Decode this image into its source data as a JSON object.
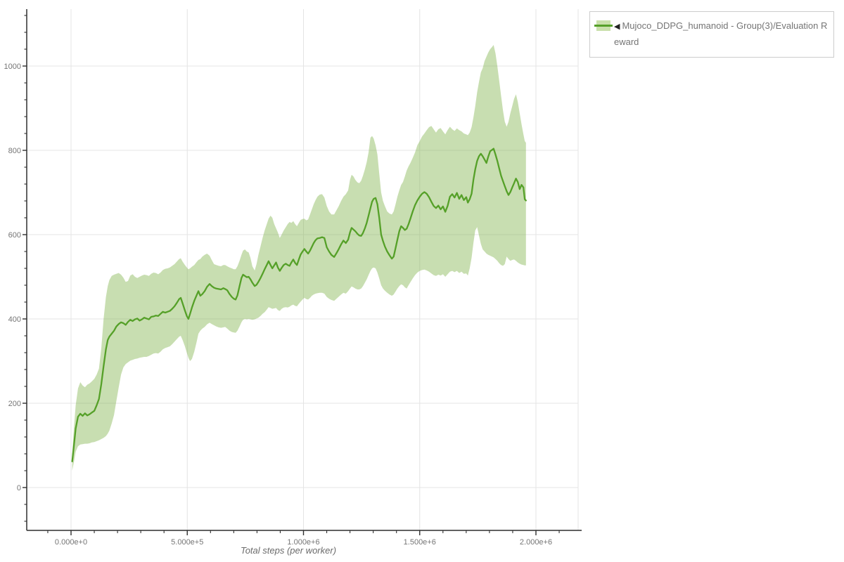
{
  "axes": {
    "xlabel": "Total steps (per worker)",
    "x_tick_labels": [
      "0.000e+0",
      "5.000e+5",
      "1.000e+6",
      "1.500e+6",
      "2.000e+6"
    ],
    "x_tick_values_e6": [
      0,
      0.5,
      1.0,
      1.5,
      2.0
    ],
    "x_minor_step_e6": 0.1,
    "x_minor_range_e6": [
      -0.1,
      2.1
    ],
    "y_tick_labels": [
      "0",
      "200",
      "400",
      "600",
      "800",
      "1000"
    ],
    "y_tick_values": [
      0,
      200,
      400,
      600,
      800,
      1000
    ],
    "y_minor_step": 40,
    "y_minor_range": [
      -80,
      1120
    ]
  },
  "legend": {
    "arrow": "◀",
    "label": "Mujoco_DDPG_humanoid - Group(3)/Evaluation Reward"
  },
  "colors": {
    "line": "#55a028",
    "band_fill": "#86b552",
    "band_opacity": 0.45,
    "grid": "#e4e4e4",
    "axis": "#2f2f2f",
    "tick_label": "#757575",
    "legend_swatch_bg": "#c9e0ab",
    "legend_border": "#cccccc",
    "legend_text": "#757575"
  },
  "chart_data": {
    "type": "line",
    "title": "",
    "xlabel": "Total steps (per worker)",
    "ylabel": "",
    "x_unit": "steps (value × 1e6)",
    "xlim_e6": [
      -0.19,
      2.18
    ],
    "ylim": [
      -100,
      1135
    ],
    "grid": true,
    "legend_position": "top-right",
    "series_name": "Mujoco_DDPG_humanoid - Group(3)/Evaluation Reward",
    "note": "points are [steps_e6, mean_reward, band_lower, band_upper]",
    "points": [
      [
        0.005,
        62,
        40,
        80
      ],
      [
        0.012,
        98,
        60,
        140
      ],
      [
        0.02,
        140,
        85,
        195
      ],
      [
        0.03,
        168,
        98,
        235
      ],
      [
        0.04,
        175,
        102,
        250
      ],
      [
        0.05,
        170,
        103,
        242
      ],
      [
        0.06,
        176,
        104,
        238
      ],
      [
        0.07,
        171,
        104,
        244
      ],
      [
        0.08,
        174,
        105,
        247
      ],
      [
        0.09,
        178,
        107,
        252
      ],
      [
        0.1,
        182,
        108,
        258
      ],
      [
        0.11,
        195,
        110,
        268
      ],
      [
        0.12,
        210,
        112,
        282
      ],
      [
        0.13,
        245,
        115,
        330
      ],
      [
        0.14,
        288,
        118,
        400
      ],
      [
        0.15,
        328,
        122,
        452
      ],
      [
        0.158,
        350,
        128,
        478
      ],
      [
        0.165,
        358,
        135,
        492
      ],
      [
        0.175,
        365,
        152,
        502
      ],
      [
        0.185,
        372,
        172,
        505
      ],
      [
        0.195,
        382,
        205,
        507
      ],
      [
        0.205,
        388,
        238,
        509
      ],
      [
        0.215,
        392,
        268,
        505
      ],
      [
        0.225,
        390,
        285,
        498
      ],
      [
        0.235,
        386,
        293,
        488
      ],
      [
        0.245,
        393,
        297,
        490
      ],
      [
        0.255,
        398,
        301,
        503
      ],
      [
        0.265,
        395,
        303,
        506
      ],
      [
        0.275,
        399,
        305,
        500
      ],
      [
        0.285,
        401,
        306,
        497
      ],
      [
        0.295,
        396,
        308,
        500
      ],
      [
        0.305,
        399,
        309,
        503
      ],
      [
        0.315,
        403,
        310,
        505
      ],
      [
        0.325,
        401,
        310,
        504
      ],
      [
        0.335,
        399,
        312,
        502
      ],
      [
        0.345,
        405,
        315,
        507
      ],
      [
        0.355,
        406,
        318,
        510
      ],
      [
        0.365,
        408,
        319,
        509
      ],
      [
        0.375,
        407,
        318,
        506
      ],
      [
        0.385,
        412,
        322,
        510
      ],
      [
        0.395,
        417,
        328,
        516
      ],
      [
        0.405,
        415,
        331,
        519
      ],
      [
        0.415,
        417,
        333,
        520
      ],
      [
        0.425,
        419,
        335,
        522
      ],
      [
        0.435,
        424,
        340,
        526
      ],
      [
        0.445,
        430,
        346,
        530
      ],
      [
        0.455,
        438,
        352,
        536
      ],
      [
        0.465,
        447,
        358,
        542
      ],
      [
        0.472,
        450,
        360,
        544
      ],
      [
        0.48,
        437,
        350,
        536
      ],
      [
        0.49,
        420,
        335,
        528
      ],
      [
        0.498,
        407,
        320,
        522
      ],
      [
        0.505,
        400,
        308,
        518
      ],
      [
        0.512,
        412,
        300,
        520
      ],
      [
        0.52,
        427,
        305,
        524
      ],
      [
        0.53,
        443,
        322,
        528
      ],
      [
        0.54,
        456,
        345,
        535
      ],
      [
        0.548,
        466,
        365,
        540
      ],
      [
        0.556,
        455,
        372,
        542
      ],
      [
        0.565,
        459,
        377,
        548
      ],
      [
        0.575,
        466,
        381,
        552
      ],
      [
        0.585,
        476,
        387,
        555
      ],
      [
        0.596,
        483,
        391,
        550
      ],
      [
        0.605,
        478,
        388,
        540
      ],
      [
        0.615,
        474,
        385,
        530
      ],
      [
        0.625,
        472,
        382,
        528
      ],
      [
        0.635,
        471,
        380,
        526
      ],
      [
        0.645,
        470,
        379,
        525
      ],
      [
        0.655,
        473,
        380,
        528
      ],
      [
        0.663,
        471,
        381,
        528
      ],
      [
        0.672,
        468,
        377,
        525
      ],
      [
        0.682,
        459,
        372,
        522
      ],
      [
        0.692,
        452,
        369,
        520
      ],
      [
        0.7,
        448,
        368,
        518
      ],
      [
        0.708,
        446,
        367,
        518
      ],
      [
        0.716,
        456,
        372,
        525
      ],
      [
        0.725,
        478,
        382,
        538
      ],
      [
        0.733,
        497,
        392,
        552
      ],
      [
        0.74,
        505,
        398,
        562
      ],
      [
        0.748,
        502,
        400,
        565
      ],
      [
        0.756,
        499,
        399,
        560
      ],
      [
        0.764,
        500,
        400,
        558
      ],
      [
        0.772,
        494,
        399,
        545
      ],
      [
        0.78,
        486,
        398,
        525
      ],
      [
        0.79,
        478,
        399,
        515
      ],
      [
        0.798,
        481,
        401,
        530
      ],
      [
        0.806,
        488,
        403,
        552
      ],
      [
        0.815,
        497,
        407,
        572
      ],
      [
        0.824,
        507,
        412,
        592
      ],
      [
        0.833,
        518,
        416,
        610
      ],
      [
        0.842,
        528,
        422,
        625
      ],
      [
        0.85,
        537,
        428,
        638
      ],
      [
        0.858,
        528,
        426,
        645
      ],
      [
        0.866,
        520,
        424,
        640
      ],
      [
        0.874,
        527,
        425,
        625
      ],
      [
        0.882,
        534,
        426,
        615
      ],
      [
        0.89,
        522,
        421,
        605
      ],
      [
        0.898,
        514,
        419,
        592
      ],
      [
        0.906,
        521,
        424,
        600
      ],
      [
        0.915,
        528,
        427,
        610
      ],
      [
        0.924,
        531,
        428,
        618
      ],
      [
        0.932,
        528,
        427,
        625
      ],
      [
        0.94,
        526,
        429,
        630
      ],
      [
        0.948,
        534,
        432,
        628
      ],
      [
        0.956,
        541,
        434,
        632
      ],
      [
        0.964,
        533,
        431,
        625
      ],
      [
        0.972,
        528,
        430,
        620
      ],
      [
        0.98,
        541,
        436,
        628
      ],
      [
        0.988,
        553,
        441,
        635
      ],
      [
        0.996,
        560,
        446,
        637
      ],
      [
        1.004,
        566,
        450,
        638
      ],
      [
        1.012,
        560,
        447,
        634
      ],
      [
        1.02,
        555,
        446,
        636
      ],
      [
        1.028,
        562,
        450,
        648
      ],
      [
        1.036,
        571,
        455,
        660
      ],
      [
        1.044,
        580,
        458,
        672
      ],
      [
        1.052,
        587,
        460,
        682
      ],
      [
        1.06,
        591,
        461,
        690
      ],
      [
        1.07,
        592,
        462,
        695
      ],
      [
        1.08,
        594,
        462,
        696
      ],
      [
        1.09,
        592,
        460,
        688
      ],
      [
        1.1,
        570,
        452,
        668
      ],
      [
        1.11,
        560,
        448,
        655
      ],
      [
        1.12,
        552,
        445,
        648
      ],
      [
        1.132,
        547,
        443,
        648
      ],
      [
        1.142,
        556,
        448,
        658
      ],
      [
        1.152,
        566,
        453,
        668
      ],
      [
        1.162,
        577,
        458,
        680
      ],
      [
        1.172,
        586,
        462,
        690
      ],
      [
        1.182,
        580,
        460,
        696
      ],
      [
        1.192,
        588,
        466,
        705
      ],
      [
        1.2,
        605,
        472,
        730
      ],
      [
        1.207,
        616,
        477,
        742
      ],
      [
        1.215,
        612,
        475,
        738
      ],
      [
        1.223,
        608,
        472,
        730
      ],
      [
        1.232,
        602,
        470,
        724
      ],
      [
        1.24,
        598,
        470,
        722
      ],
      [
        1.248,
        597,
        472,
        728
      ],
      [
        1.256,
        604,
        478,
        740
      ],
      [
        1.264,
        615,
        486,
        755
      ],
      [
        1.272,
        628,
        494,
        772
      ],
      [
        1.28,
        645,
        504,
        795
      ],
      [
        1.288,
        663,
        514,
        830
      ],
      [
        1.295,
        678,
        520,
        834
      ],
      [
        1.302,
        685,
        522,
        828
      ],
      [
        1.31,
        687,
        520,
        812
      ],
      [
        1.318,
        672,
        510,
        790
      ],
      [
        1.326,
        640,
        496,
        745
      ],
      [
        1.334,
        600,
        480,
        700
      ],
      [
        1.342,
        585,
        472,
        680
      ],
      [
        1.35,
        572,
        467,
        668
      ],
      [
        1.36,
        560,
        462,
        655
      ],
      [
        1.37,
        551,
        458,
        650
      ],
      [
        1.38,
        543,
        455,
        648
      ],
      [
        1.388,
        548,
        458,
        655
      ],
      [
        1.396,
        568,
        465,
        672
      ],
      [
        1.404,
        588,
        472,
        690
      ],
      [
        1.412,
        608,
        478,
        705
      ],
      [
        1.42,
        620,
        482,
        718
      ],
      [
        1.428,
        616,
        480,
        725
      ],
      [
        1.436,
        611,
        475,
        738
      ],
      [
        1.444,
        614,
        472,
        752
      ],
      [
        1.452,
        625,
        480,
        762
      ],
      [
        1.46,
        638,
        487,
        770
      ],
      [
        1.47,
        655,
        496,
        782
      ],
      [
        1.48,
        670,
        504,
        795
      ],
      [
        1.49,
        681,
        510,
        812
      ],
      [
        1.5,
        690,
        514,
        822
      ],
      [
        1.51,
        697,
        516,
        833
      ],
      [
        1.52,
        701,
        517,
        840
      ],
      [
        1.53,
        697,
        515,
        848
      ],
      [
        1.54,
        689,
        512,
        855
      ],
      [
        1.55,
        678,
        508,
        858
      ],
      [
        1.56,
        668,
        504,
        850
      ],
      [
        1.57,
        663,
        502,
        842
      ],
      [
        1.58,
        669,
        505,
        850
      ],
      [
        1.59,
        660,
        503,
        853
      ],
      [
        1.6,
        667,
        506,
        845
      ],
      [
        1.61,
        654,
        500,
        838
      ],
      [
        1.62,
        668,
        506,
        848
      ],
      [
        1.63,
        690,
        512,
        856
      ],
      [
        1.64,
        696,
        514,
        850
      ],
      [
        1.65,
        688,
        511,
        846
      ],
      [
        1.66,
        699,
        514,
        852
      ],
      [
        1.67,
        685,
        509,
        848
      ],
      [
        1.68,
        694,
        512,
        845
      ],
      [
        1.69,
        682,
        507,
        840
      ],
      [
        1.7,
        689,
        508,
        838
      ],
      [
        1.707,
        676,
        503,
        836
      ],
      [
        1.715,
        684,
        520,
        842
      ],
      [
        1.723,
        697,
        545,
        855
      ],
      [
        1.731,
        730,
        580,
        878
      ],
      [
        1.739,
        755,
        610,
        905
      ],
      [
        1.747,
        775,
        618,
        938
      ],
      [
        1.755,
        786,
        598,
        962
      ],
      [
        1.763,
        792,
        578,
        985
      ],
      [
        1.771,
        786,
        565,
        995
      ],
      [
        1.779,
        778,
        560,
        1012
      ],
      [
        1.787,
        770,
        555,
        1022
      ],
      [
        1.795,
        785,
        552,
        1032
      ],
      [
        1.803,
        798,
        550,
        1040
      ],
      [
        1.811,
        801,
        548,
        1045
      ],
      [
        1.818,
        804,
        546,
        1050
      ],
      [
        1.826,
        790,
        542,
        1030
      ],
      [
        1.834,
        775,
        538,
        1000
      ],
      [
        1.842,
        757,
        532,
        965
      ],
      [
        1.85,
        740,
        528,
        930
      ],
      [
        1.858,
        727,
        526,
        895
      ],
      [
        1.866,
        715,
        530,
        868
      ],
      [
        1.874,
        703,
        548,
        856
      ],
      [
        1.882,
        694,
        542,
        868
      ],
      [
        1.89,
        701,
        538,
        888
      ],
      [
        1.898,
        712,
        540,
        905
      ],
      [
        1.906,
        722,
        541,
        922
      ],
      [
        1.914,
        733,
        538,
        933
      ],
      [
        1.922,
        725,
        534,
        915
      ],
      [
        1.93,
        708,
        531,
        888
      ],
      [
        1.938,
        718,
        529,
        862
      ],
      [
        1.946,
        712,
        528,
        838
      ],
      [
        1.952,
        684,
        527,
        822
      ],
      [
        1.957,
        681,
        527,
        818
      ]
    ]
  }
}
